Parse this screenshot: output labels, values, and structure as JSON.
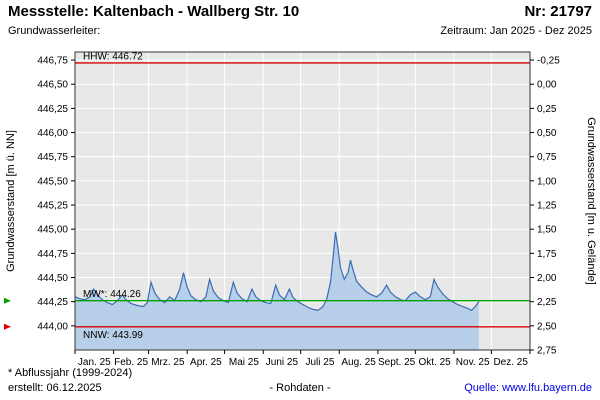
{
  "header": {
    "title": "Messstelle: Kaltenbach - Wallberg Str. 10",
    "station_no": "Nr: 21797",
    "aquifer_label": "Grundwasserleiter:",
    "period": "Zeitraum: Jan 2025 - Dez 2025"
  },
  "footer": {
    "footnote": "* Abflussjahr (1999-2024)",
    "created": "erstellt:  06.12.2025",
    "rohdaten": "- Rohdaten -",
    "source": "Quelle: www.lfu.bayern.de"
  },
  "chart_data": {
    "type": "area",
    "title": "",
    "ylabel_left": "Grundwasserstand [m ü. NN]",
    "ylabel_right": "Grundwasserstand [m u. Gelände]",
    "x_tick_labels": [
      "Jan. 25",
      "Feb. 25",
      "Mrz. 25",
      "Apr. 25",
      "Mai 25",
      "Juni 25",
      "Juli 25",
      "Aug. 25",
      "Sept. 25",
      "Okt. 25",
      "Nov. 25",
      "Dez. 25"
    ],
    "month_boundaries": [
      0,
      31,
      59,
      90,
      120,
      151,
      181,
      212,
      243,
      273,
      304,
      334,
      365
    ],
    "x_days_total": 365,
    "y_value_range": [
      443.75,
      446.8333
    ],
    "ground_level": 446.5,
    "grid": true,
    "legend": "none",
    "y_left_ticks": [
      {
        "v": 446.75,
        "t": "446,75"
      },
      {
        "v": 446.5,
        "t": "446,50"
      },
      {
        "v": 446.25,
        "t": "446,25"
      },
      {
        "v": 446.0,
        "t": "446,00"
      },
      {
        "v": 445.75,
        "t": "445,75"
      },
      {
        "v": 445.5,
        "t": "445,50"
      },
      {
        "v": 445.25,
        "t": "445,25"
      },
      {
        "v": 445.0,
        "t": "445,00"
      },
      {
        "v": 444.75,
        "t": "444,75"
      },
      {
        "v": 444.5,
        "t": "444,50"
      },
      {
        "v": 444.25,
        "t": "444,25"
      },
      {
        "v": 444.0,
        "t": "444,00"
      }
    ],
    "y_right_ticks": [
      {
        "v": -0.25,
        "t": "-0,25"
      },
      {
        "v": 0.0,
        "t": "0,00"
      },
      {
        "v": 0.25,
        "t": "0,25"
      },
      {
        "v": 0.5,
        "t": "0,50"
      },
      {
        "v": 0.75,
        "t": "0,75"
      },
      {
        "v": 1.0,
        "t": "1,00"
      },
      {
        "v": 1.25,
        "t": "1,25"
      },
      {
        "v": 1.5,
        "t": "1,50"
      },
      {
        "v": 1.75,
        "t": "1,75"
      },
      {
        "v": 2.0,
        "t": "2,00"
      },
      {
        "v": 2.25,
        "t": "2,25"
      },
      {
        "v": 2.5,
        "t": "2,50"
      },
      {
        "v": 2.75,
        "t": "2,75"
      }
    ],
    "reference_lines": [
      {
        "name": "HHW",
        "label": "HHW: 446.72",
        "value": 446.72,
        "color": "#dd0000",
        "label_pos": "above",
        "edge_marker": false
      },
      {
        "name": "MW",
        "label": "MW*: 444.26",
        "value": 444.26,
        "color": "#00a000",
        "label_pos": "above",
        "edge_marker": true
      },
      {
        "name": "NNW",
        "label": "NNW: 443.99",
        "value": 443.99,
        "color": "#dd0000",
        "label_pos": "below",
        "edge_marker": true
      }
    ],
    "series": [
      {
        "name": "Grundwasserstand 2025 (Rohdaten)",
        "points": [
          [
            0,
            444.3
          ],
          [
            4,
            444.28
          ],
          [
            8,
            444.27
          ],
          [
            12,
            444.3
          ],
          [
            15,
            444.38
          ],
          [
            18,
            444.32
          ],
          [
            22,
            444.27
          ],
          [
            26,
            444.24
          ],
          [
            30,
            444.22
          ],
          [
            34,
            444.26
          ],
          [
            38,
            444.32
          ],
          [
            41,
            444.27
          ],
          [
            45,
            444.23
          ],
          [
            50,
            444.21
          ],
          [
            55,
            444.2
          ],
          [
            58,
            444.24
          ],
          [
            61,
            444.45
          ],
          [
            64,
            444.34
          ],
          [
            68,
            444.27
          ],
          [
            72,
            444.24
          ],
          [
            76,
            444.3
          ],
          [
            80,
            444.26
          ],
          [
            84,
            444.38
          ],
          [
            87,
            444.55
          ],
          [
            90,
            444.4
          ],
          [
            93,
            444.31
          ],
          [
            97,
            444.27
          ],
          [
            101,
            444.25
          ],
          [
            105,
            444.3
          ],
          [
            108,
            444.48
          ],
          [
            111,
            444.36
          ],
          [
            115,
            444.29
          ],
          [
            119,
            444.26
          ],
          [
            123,
            444.24
          ],
          [
            127,
            444.45
          ],
          [
            130,
            444.34
          ],
          [
            134,
            444.28
          ],
          [
            138,
            444.25
          ],
          [
            142,
            444.38
          ],
          [
            145,
            444.3
          ],
          [
            149,
            444.26
          ],
          [
            153,
            444.24
          ],
          [
            157,
            444.23
          ],
          [
            161,
            444.42
          ],
          [
            164,
            444.32
          ],
          [
            168,
            444.27
          ],
          [
            172,
            444.38
          ],
          [
            175,
            444.29
          ],
          [
            179,
            444.25
          ],
          [
            183,
            444.22
          ],
          [
            187,
            444.19
          ],
          [
            191,
            444.17
          ],
          [
            195,
            444.16
          ],
          [
            199,
            444.2
          ],
          [
            202,
            444.28
          ],
          [
            205,
            444.45
          ],
          [
            207,
            444.7
          ],
          [
            209,
            444.97
          ],
          [
            211,
            444.8
          ],
          [
            213,
            444.6
          ],
          [
            216,
            444.48
          ],
          [
            219,
            444.55
          ],
          [
            221,
            444.68
          ],
          [
            223,
            444.58
          ],
          [
            226,
            444.46
          ],
          [
            230,
            444.4
          ],
          [
            234,
            444.35
          ],
          [
            238,
            444.32
          ],
          [
            242,
            444.3
          ],
          [
            246,
            444.34
          ],
          [
            250,
            444.42
          ],
          [
            253,
            444.35
          ],
          [
            257,
            444.3
          ],
          [
            261,
            444.27
          ],
          [
            265,
            444.26
          ],
          [
            269,
            444.32
          ],
          [
            273,
            444.35
          ],
          [
            277,
            444.3
          ],
          [
            281,
            444.27
          ],
          [
            285,
            444.3
          ],
          [
            288,
            444.48
          ],
          [
            291,
            444.4
          ],
          [
            295,
            444.33
          ],
          [
            299,
            444.28
          ],
          [
            303,
            444.25
          ],
          [
            307,
            444.22
          ],
          [
            311,
            444.2
          ],
          [
            315,
            444.18
          ],
          [
            318,
            444.16
          ],
          [
            321,
            444.2
          ],
          [
            324,
            444.25
          ]
        ]
      }
    ],
    "colors": {
      "plot_bg": "#e8e8e8",
      "grid": "#ffffff",
      "line": "#3a6cb5",
      "fill": "#b8cfe9",
      "axis": "#000000",
      "border": "#333333",
      "link": "#0000dd"
    }
  }
}
